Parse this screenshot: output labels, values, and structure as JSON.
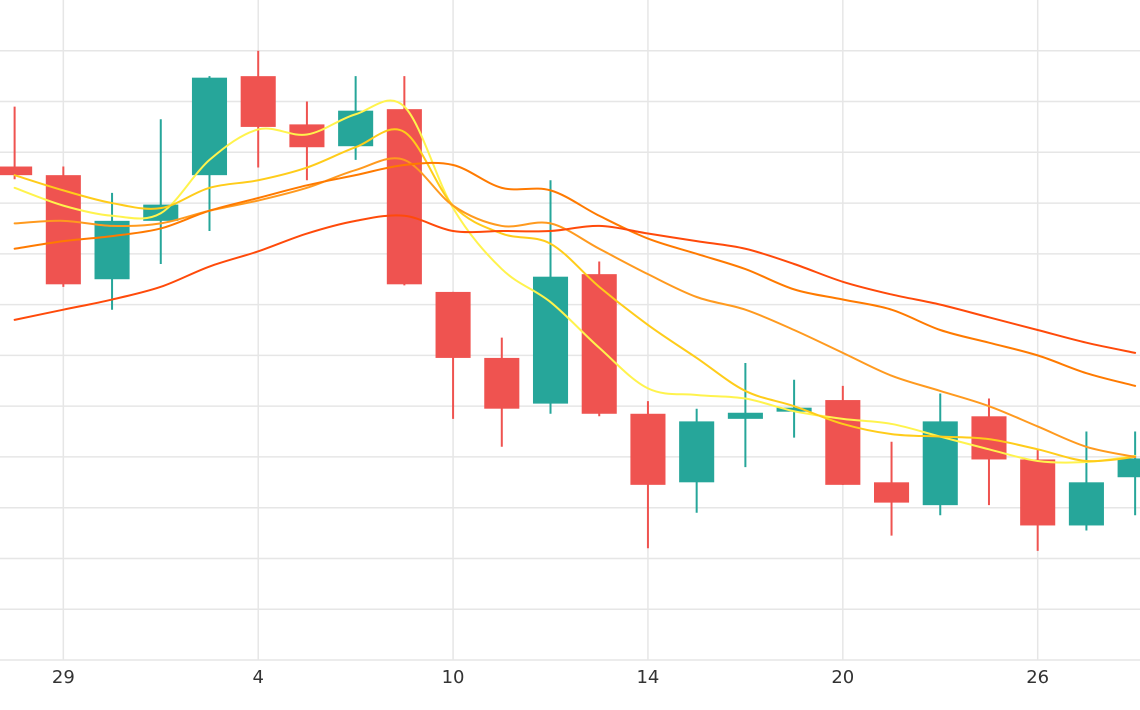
{
  "chart_data": {
    "type": "candlestick",
    "x_tick_labels": [
      "29",
      "4",
      "10",
      "14",
      "20",
      "26"
    ],
    "x_tick_indices": [
      1,
      5,
      9,
      13,
      17,
      21
    ],
    "x_range": [
      -0.3,
      23.1
    ],
    "ylim": [
      0,
      13
    ],
    "y_gridlines": [
      1,
      2,
      3,
      4,
      5,
      6,
      7,
      8,
      9,
      10,
      11,
      12
    ],
    "grid": true,
    "colors": {
      "up": "#26a69a",
      "down": "#ef5350",
      "grid": "#e6e6e6"
    },
    "candles": [
      {
        "o": 9.72,
        "h": 10.9,
        "l": 9.47,
        "c": 9.55
      },
      {
        "o": 9.55,
        "h": 9.72,
        "l": 7.35,
        "c": 7.4
      },
      {
        "o": 7.5,
        "h": 9.2,
        "l": 6.9,
        "c": 8.65
      },
      {
        "o": 8.65,
        "h": 10.65,
        "l": 7.8,
        "c": 8.97
      },
      {
        "o": 9.55,
        "h": 11.5,
        "l": 8.45,
        "c": 11.47
      },
      {
        "o": 11.5,
        "h": 12.0,
        "l": 9.7,
        "c": 10.5
      },
      {
        "o": 10.55,
        "h": 11.0,
        "l": 9.45,
        "c": 10.1
      },
      {
        "o": 10.12,
        "h": 11.5,
        "l": 9.85,
        "c": 10.82
      },
      {
        "o": 10.85,
        "h": 11.5,
        "l": 7.38,
        "c": 7.4
      },
      {
        "o": 7.25,
        "h": 7.25,
        "l": 4.75,
        "c": 5.95
      },
      {
        "o": 5.95,
        "h": 6.35,
        "l": 4.2,
        "c": 4.95
      },
      {
        "o": 5.05,
        "h": 9.45,
        "l": 4.85,
        "c": 7.55
      },
      {
        "o": 7.6,
        "h": 7.85,
        "l": 4.8,
        "c": 4.85
      },
      {
        "o": 4.85,
        "h": 5.1,
        "l": 2.2,
        "c": 3.45
      },
      {
        "o": 3.5,
        "h": 4.95,
        "l": 2.9,
        "c": 4.7
      },
      {
        "o": 4.75,
        "h": 5.85,
        "l": 3.8,
        "c": 4.87
      },
      {
        "o": 4.97,
        "h": 5.52,
        "l": 4.38,
        "c": 4.97
      },
      {
        "o": 5.12,
        "h": 5.4,
        "l": 3.45,
        "c": 3.45
      },
      {
        "o": 3.5,
        "h": 4.3,
        "l": 2.45,
        "c": 3.1
      },
      {
        "o": 3.05,
        "h": 5.25,
        "l": 2.85,
        "c": 4.7
      },
      {
        "o": 4.8,
        "h": 5.15,
        "l": 3.05,
        "c": 3.95
      },
      {
        "o": 3.95,
        "h": 4.15,
        "l": 2.15,
        "c": 2.65
      },
      {
        "o": 2.65,
        "h": 4.5,
        "l": 2.55,
        "c": 3.5
      },
      {
        "o": 3.6,
        "h": 4.5,
        "l": 2.85,
        "c": 3.97
      }
    ],
    "series": [
      {
        "color": "#fff34d",
        "values": [
          9.3,
          8.95,
          8.75,
          8.8,
          9.85,
          10.45,
          10.35,
          10.75,
          10.9,
          8.9,
          7.7,
          7.05,
          6.15,
          5.35,
          5.22,
          5.15,
          4.9,
          4.75,
          4.65,
          4.4,
          4.15,
          3.92,
          3.9,
          4.02
        ]
      },
      {
        "color": "#ffcc1a",
        "values": [
          9.55,
          9.25,
          9.0,
          8.9,
          9.3,
          9.45,
          9.7,
          10.1,
          10.4,
          8.95,
          8.4,
          8.2,
          7.35,
          6.6,
          5.95,
          5.3,
          5.0,
          4.65,
          4.45,
          4.4,
          4.35,
          4.15,
          3.92,
          4.0
        ]
      },
      {
        "color": "#ff9a1f",
        "values": [
          8.6,
          8.65,
          8.55,
          8.6,
          8.85,
          9.05,
          9.3,
          9.65,
          9.85,
          8.95,
          8.55,
          8.6,
          8.1,
          7.6,
          7.15,
          6.9,
          6.5,
          6.05,
          5.6,
          5.3,
          5.0,
          4.6,
          4.2,
          4.0
        ]
      },
      {
        "color": "#ff7a00",
        "values": [
          8.1,
          8.25,
          8.35,
          8.5,
          8.85,
          9.1,
          9.35,
          9.55,
          9.75,
          9.75,
          9.3,
          9.25,
          8.75,
          8.3,
          8.0,
          7.7,
          7.3,
          7.1,
          6.9,
          6.5,
          6.25,
          6.0,
          5.65,
          5.4
        ]
      },
      {
        "color": "#ff4a0a",
        "values": [
          6.7,
          6.9,
          7.1,
          7.35,
          7.75,
          8.05,
          8.4,
          8.65,
          8.75,
          8.45,
          8.45,
          8.45,
          8.55,
          8.4,
          8.25,
          8.1,
          7.8,
          7.45,
          7.2,
          7.0,
          6.75,
          6.5,
          6.25,
          6.05
        ]
      }
    ]
  }
}
